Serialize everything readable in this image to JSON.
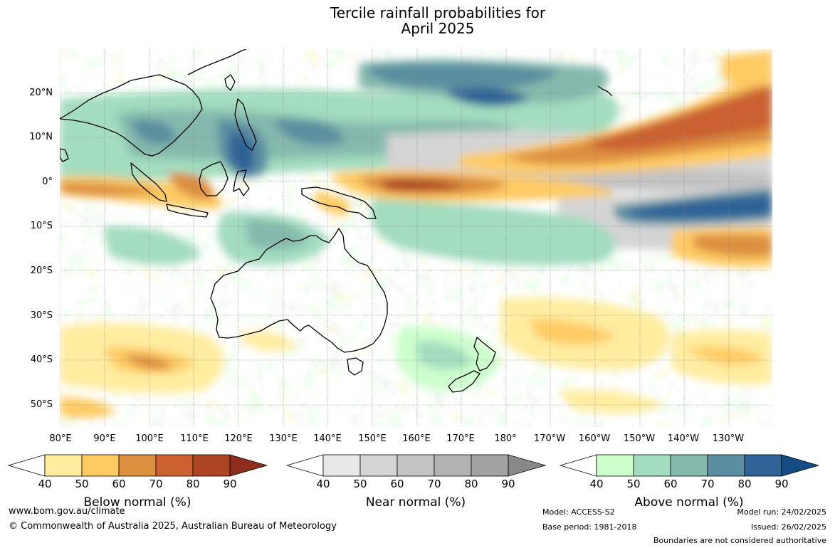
{
  "title": {
    "line1": "Tercile rainfall probabilities for",
    "line2": "April 2025"
  },
  "lat_labels": [
    "20°N",
    "10°N",
    "0°",
    "10°S",
    "20°S",
    "30°S",
    "40°S",
    "50°S"
  ],
  "lon_labels": [
    "80°E",
    "90°E",
    "100°E",
    "110°E",
    "120°E",
    "130°E",
    "140°E",
    "150°E",
    "160°E",
    "170°E",
    "180°",
    "170°W",
    "160°W",
    "150°W",
    "140°W",
    "130°W"
  ],
  "colorbars": [
    {
      "title": "Below normal (%)",
      "colors": [
        "#ffffff",
        "#ffeda0",
        "#fecb63",
        "#dd8f40",
        "#cb6131",
        "#ac4424",
        "#8c2d1d"
      ]
    },
    {
      "title": "Near normal (%)",
      "colors": [
        "#ffffff",
        "#e8e8e8",
        "#d4d4d4",
        "#c3c3c3",
        "#b3b3b3",
        "#a3a3a3",
        "#888888"
      ]
    },
    {
      "title": "Above normal (%)",
      "colors": [
        "#ffffff",
        "#ccffcc",
        "#a3dcbf",
        "#85b9ad",
        "#5a8ea0",
        "#2f6296",
        "#134c82"
      ]
    }
  ],
  "tick_labels": [
    "40",
    "50",
    "60",
    "70",
    "80",
    "90"
  ],
  "footer": {
    "website": "www.bom.gov.au/climate",
    "copyright": "© Commonwealth of Australia 2025, Australian Bureau of Meteorology",
    "model": "Model: ACCESS-S2",
    "base_period": "Base period: 1981-2018",
    "model_run": "Model run: 24/02/2025",
    "issued": "Issued: 26/02/2025",
    "disclaimer": "Boundaries are not considered authoritative"
  }
}
